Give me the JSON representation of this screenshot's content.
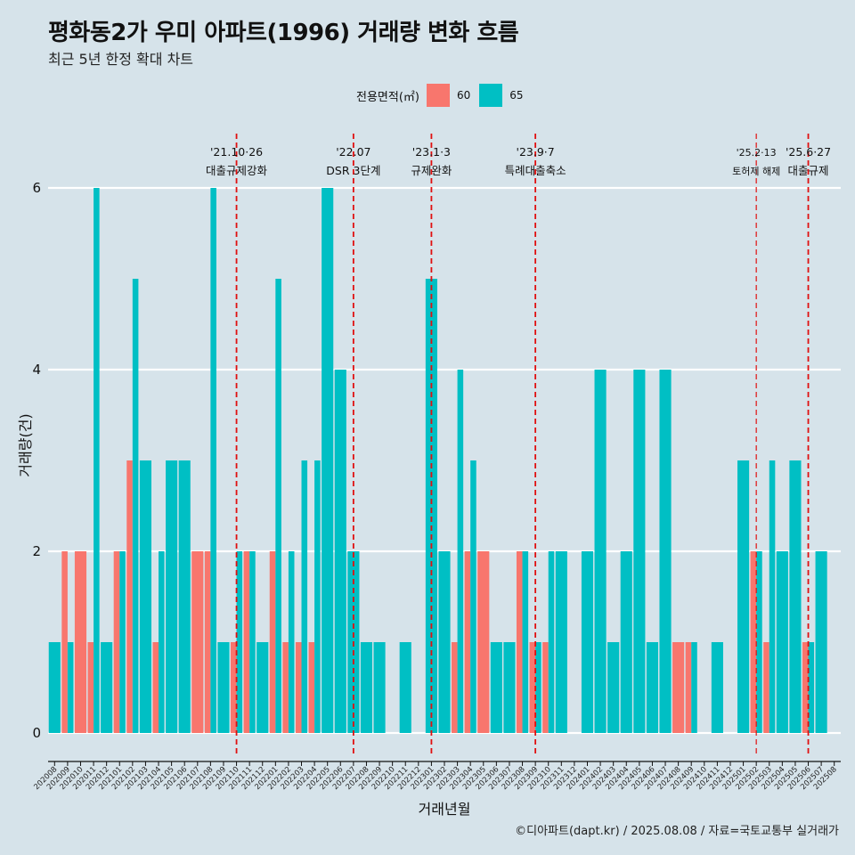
{
  "chart_data": {
    "type": "bar",
    "title": "평화동2가 우미 아파트(1996) 거래량 변화 흐름",
    "subtitle": "최근 5년 한정 확대 차트",
    "xlabel": "거래년월",
    "ylabel": "거래량(건)",
    "ylim": [
      0,
      6.5
    ],
    "yticks": [
      0,
      2,
      4,
      6
    ],
    "legend_title": "전용면적(㎡)",
    "legend_position": "top",
    "caption": "©디아파트(dapt.kr) / 2025.08.08 / 자료=국토교통부 실거래가",
    "colors": {
      "60": "#f8766d",
      "65": "#00bfc4",
      "background": "#d6e3ea",
      "grid": "#ffffff",
      "event_line": "#e01010"
    },
    "categories": [
      "202008",
      "202009",
      "202010",
      "202011",
      "202012",
      "202101",
      "202102",
      "202103",
      "202104",
      "202105",
      "202106",
      "202107",
      "202108",
      "202109",
      "202110",
      "202111",
      "202112",
      "202201",
      "202202",
      "202203",
      "202204",
      "202205",
      "202206",
      "202207",
      "202208",
      "202209",
      "202210",
      "202211",
      "202212",
      "202301",
      "202302",
      "202303",
      "202304",
      "202305",
      "202306",
      "202307",
      "202308",
      "202309",
      "202310",
      "202311",
      "202312",
      "202401",
      "202402",
      "202403",
      "202404",
      "202405",
      "202406",
      "202407",
      "202408",
      "202409",
      "202410",
      "202411",
      "202412",
      "202501",
      "202502",
      "202503",
      "202504",
      "202505",
      "202506",
      "202507",
      "202508"
    ],
    "series": [
      {
        "name": "60",
        "values": [
          0,
          2,
          2,
          1,
          0,
          2,
          3,
          0,
          1,
          0,
          0,
          2,
          2,
          0,
          1,
          2,
          0,
          2,
          1,
          1,
          1,
          0,
          0,
          0,
          0,
          0,
          0,
          0,
          0,
          0,
          0,
          1,
          2,
          2,
          0,
          0,
          2,
          1,
          1,
          0,
          0,
          0,
          0,
          0,
          0,
          0,
          0,
          0,
          1,
          1,
          0,
          0,
          0,
          0,
          2,
          1,
          0,
          0,
          1,
          0,
          0
        ]
      },
      {
        "name": "65",
        "values": [
          1,
          1,
          0,
          6,
          1,
          2,
          5,
          3,
          2,
          3,
          3,
          0,
          6,
          1,
          2,
          2,
          1,
          5,
          2,
          3,
          3,
          6,
          4,
          2,
          1,
          1,
          0,
          1,
          0,
          5,
          2,
          4,
          3,
          0,
          1,
          1,
          2,
          1,
          2,
          2,
          0,
          2,
          4,
          1,
          2,
          4,
          1,
          4,
          0,
          1,
          0,
          1,
          0,
          3,
          2,
          3,
          2,
          3,
          1,
          2,
          0
        ]
      }
    ],
    "events": [
      {
        "month": "202110",
        "date": "'21.10·26",
        "label": "대출규제강화"
      },
      {
        "month": "202207",
        "date": "'22.07",
        "label": "DSR 3단계"
      },
      {
        "month": "202301",
        "date": "'23.1·3",
        "label": "규제완화"
      },
      {
        "month": "202309",
        "date": "'23.9·7",
        "label": "특례대출축소"
      },
      {
        "month": "202502",
        "date": "'25.2·13",
        "label": "토허제 해제",
        "small": true
      },
      {
        "month": "202506",
        "date": "'25.6·27",
        "label": "대출규제"
      }
    ]
  }
}
